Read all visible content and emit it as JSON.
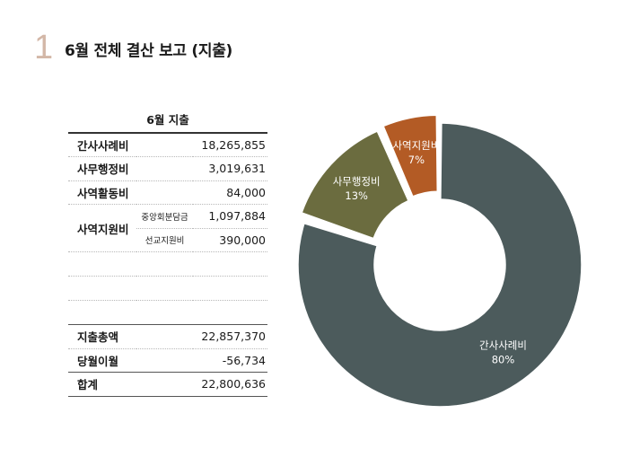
{
  "header": {
    "slide_number": "1",
    "title": "6월 전체 결산 보고 (지출)"
  },
  "table": {
    "header": "6월 지출",
    "rows": [
      {
        "category": "간사사례비",
        "value": "18,265,855"
      },
      {
        "category": "사무행정비",
        "value": "3,019,631"
      },
      {
        "category": "사역활동비",
        "value": "84,000"
      }
    ],
    "group": {
      "category": "사역지원비",
      "items": [
        {
          "sub": "중앙회분담금",
          "value": "1,097,884"
        },
        {
          "sub": "선교지원비",
          "value": "390,000"
        }
      ]
    },
    "totals": [
      {
        "category": "지출총액",
        "value": "22,857,370"
      },
      {
        "category": "당월이월",
        "value": "-56,734"
      },
      {
        "category": "합계",
        "value": "22,800,636"
      }
    ]
  },
  "chart_data": {
    "type": "pie",
    "donut": true,
    "categories": [
      "간사사례비",
      "사역활동비",
      "사무행정비",
      "사역지원비"
    ],
    "values": [
      18265855,
      84000,
      3019631,
      1487884
    ],
    "labels": [
      {
        "name": "간사사례비",
        "percent": "80%"
      },
      {
        "name": "",
        "percent": ""
      },
      {
        "name": "사무행정비",
        "percent": "13%"
      },
      {
        "name": "사역지원비",
        "percent": "7%"
      }
    ],
    "colors": [
      "#4c5b5c",
      "#d9b38c",
      "#6b6c3f",
      "#b35b25"
    ],
    "exploded": [
      "",
      "",
      "사무행정비",
      "사역지원비"
    ]
  }
}
